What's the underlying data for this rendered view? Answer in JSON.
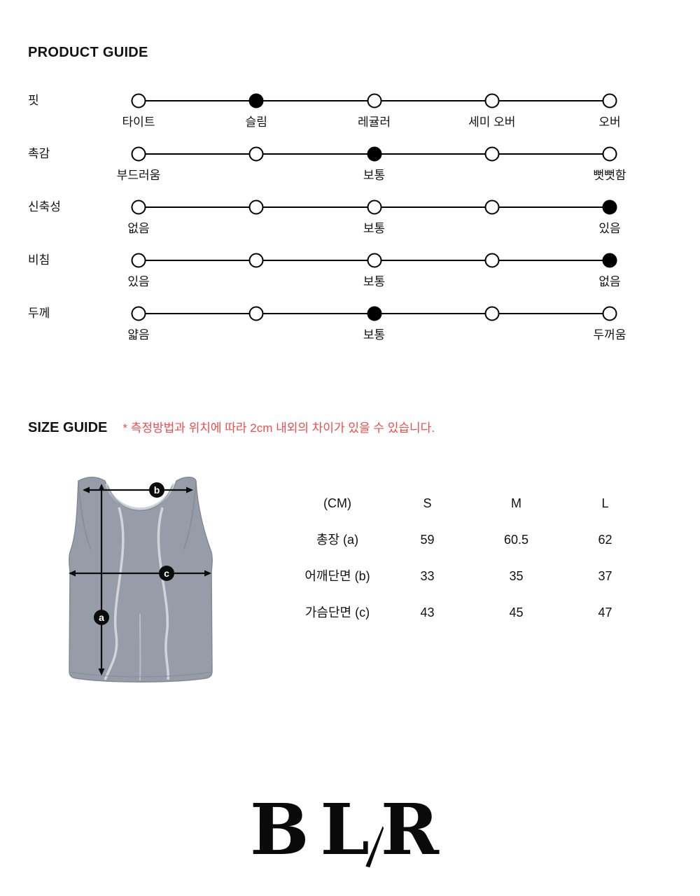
{
  "product_guide": {
    "title": "PRODUCT GUIDE",
    "dots_per_scale": 5,
    "scales": [
      {
        "name": "핏",
        "selected": 1,
        "labels": [
          {
            "pos": 0,
            "text": "타이트"
          },
          {
            "pos": 1,
            "text": "슬림"
          },
          {
            "pos": 2,
            "text": "레귤러"
          },
          {
            "pos": 3,
            "text": "세미 오버"
          },
          {
            "pos": 4,
            "text": "오버"
          }
        ]
      },
      {
        "name": "촉감",
        "selected": 2,
        "labels": [
          {
            "pos": 0,
            "text": "부드러움"
          },
          {
            "pos": 2,
            "text": "보통"
          },
          {
            "pos": 4,
            "text": "뻣뻣함"
          }
        ]
      },
      {
        "name": "신축성",
        "selected": 4,
        "labels": [
          {
            "pos": 0,
            "text": "없음"
          },
          {
            "pos": 2,
            "text": "보통"
          },
          {
            "pos": 4,
            "text": "있음"
          }
        ]
      },
      {
        "name": "비침",
        "selected": 4,
        "labels": [
          {
            "pos": 0,
            "text": "있음"
          },
          {
            "pos": 2,
            "text": "보통"
          },
          {
            "pos": 4,
            "text": "없음"
          }
        ]
      },
      {
        "name": "두께",
        "selected": 2,
        "labels": [
          {
            "pos": 0,
            "text": "얇음"
          },
          {
            "pos": 2,
            "text": "보통"
          },
          {
            "pos": 4,
            "text": "두꺼움"
          }
        ]
      }
    ]
  },
  "size_guide": {
    "title": "SIZE GUIDE",
    "note": "* 측정방법과 위치에 따라 2cm 내외의 차이가 있을 수 있습니다.",
    "diagram_markers": {
      "a": "a",
      "b": "b",
      "c": "c"
    },
    "table": {
      "headers": [
        "(CM)",
        "S",
        "M",
        "L"
      ],
      "rows": [
        {
          "label": "총장 (a)",
          "values": [
            "59",
            "60.5",
            "62"
          ]
        },
        {
          "label": "어깨단면 (b)",
          "values": [
            "33",
            "35",
            "37"
          ]
        },
        {
          "label": "가슴단면 (c)",
          "values": [
            "43",
            "45",
            "47"
          ]
        }
      ]
    }
  },
  "footer": {
    "logo_letters": [
      "B",
      "L",
      "R"
    ]
  },
  "colors": {
    "ink": "#121212",
    "note_red": "#f04c4c",
    "scale_black": "#000000",
    "garment_gray": "#979da8"
  }
}
